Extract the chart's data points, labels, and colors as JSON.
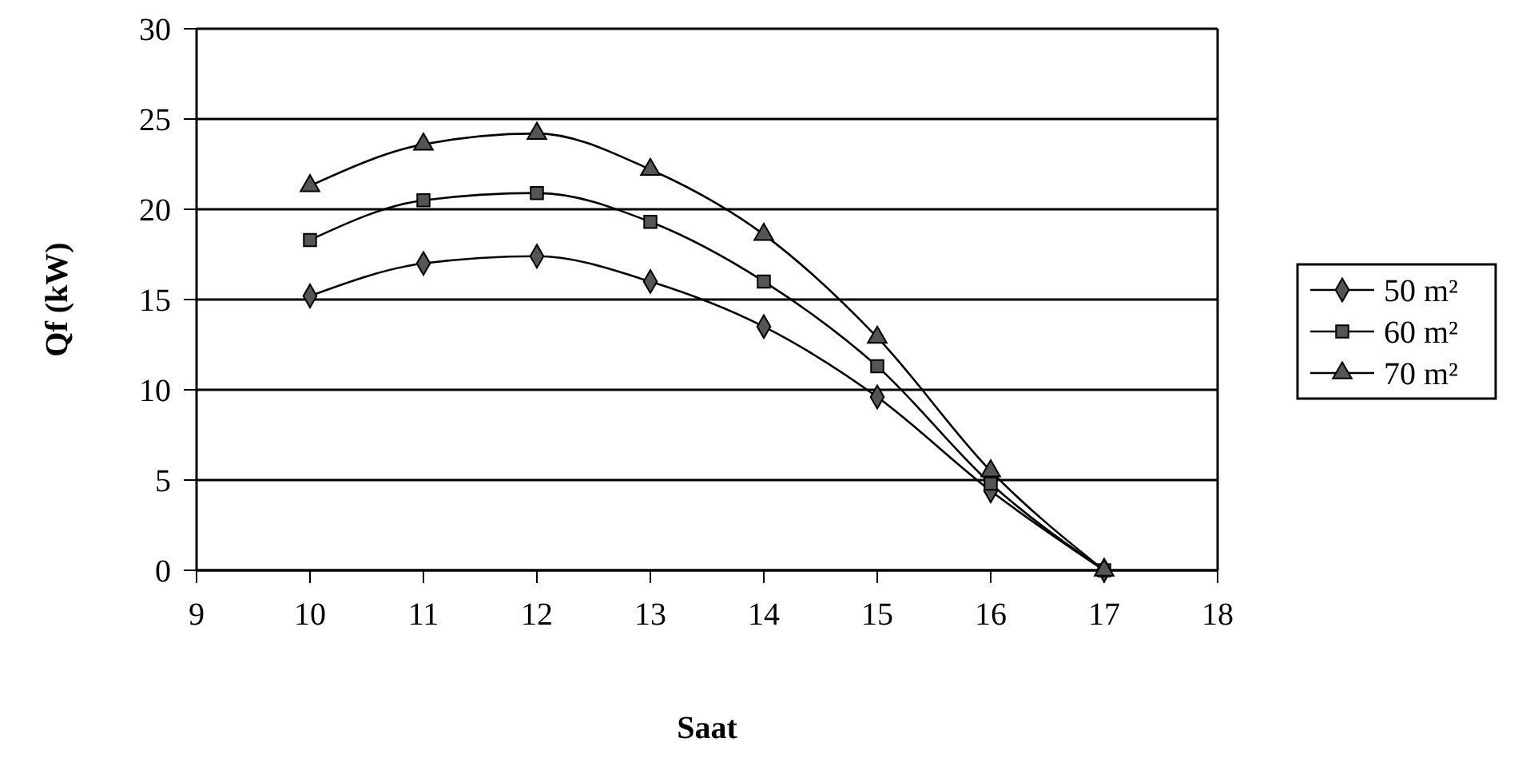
{
  "chart_data": {
    "type": "line",
    "xlabel": "Saat",
    "ylabel": "Qf (kW)",
    "x": [
      10,
      11,
      12,
      13,
      14,
      15,
      16,
      17
    ],
    "xlim": [
      9,
      18
    ],
    "xticks": [
      9,
      10,
      11,
      12,
      13,
      14,
      15,
      16,
      17,
      18
    ],
    "ylim": [
      0,
      30
    ],
    "yticks": [
      0,
      5,
      10,
      15,
      20,
      25,
      30
    ],
    "grid": "y",
    "legend": "right",
    "line_style": "solid",
    "series": [
      {
        "name": "50 m²",
        "color": "#000000",
        "marker": "diamond",
        "values": [
          15.2,
          17.0,
          17.4,
          16.0,
          13.5,
          9.6,
          4.4,
          0
        ]
      },
      {
        "name": "60 m²",
        "color": "#000000",
        "marker": "square",
        "values": [
          18.3,
          20.5,
          20.9,
          19.3,
          16.0,
          11.3,
          4.8,
          0
        ]
      },
      {
        "name": "70 m²",
        "color": "#000000",
        "marker": "triangle",
        "values": [
          21.3,
          23.6,
          24.2,
          22.2,
          18.6,
          12.9,
          5.5,
          0
        ]
      }
    ]
  }
}
